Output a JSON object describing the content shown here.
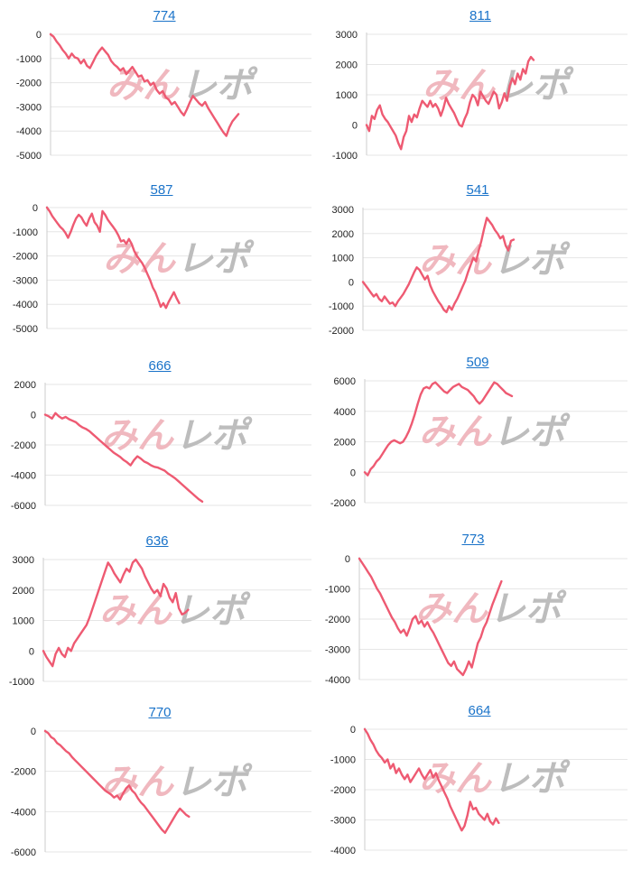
{
  "watermark": {
    "left": "みん",
    "right": "レポ"
  },
  "colors": {
    "line": "#ee5a72",
    "grid": "#e6e6e6",
    "axis": "#cccccc",
    "title": "#1a73c9",
    "watermark_left": "#f0b8bf",
    "watermark_right": "#bdbdbd"
  },
  "chart_data": [
    {
      "type": "line",
      "title": "774",
      "ylim": [
        -5000,
        0
      ],
      "yticks": [
        0,
        -1000,
        -2000,
        -3000,
        -4000,
        -5000
      ],
      "grid": true,
      "values": [
        0,
        -100,
        -300,
        -450,
        -650,
        -800,
        -1000,
        -800,
        -950,
        -1000,
        -1200,
        -1050,
        -1300,
        -1400,
        -1150,
        -900,
        -700,
        -550,
        -700,
        -850,
        -1100,
        -1250,
        -1350,
        -1500,
        -1400,
        -1650,
        -1500,
        -1350,
        -1550,
        -1750,
        -1700,
        -1950,
        -1900,
        -2100,
        -2000,
        -2300,
        -2450,
        -2350,
        -2600,
        -2700,
        -2900,
        -2800,
        -3000,
        -3200,
        -3350,
        -3100,
        -2800,
        -2550,
        -2700,
        -2850,
        -2950,
        -2800,
        -3050,
        -3250,
        -3450,
        -3650,
        -3850,
        -4050,
        -4200,
        -3850,
        -3600,
        -3450,
        -3300
      ]
    },
    {
      "type": "line",
      "title": "811",
      "ylim": [
        -1000,
        3000
      ],
      "yticks": [
        3000,
        2000,
        1000,
        0,
        -1000
      ],
      "grid": true,
      "values": [
        0,
        -200,
        300,
        200,
        500,
        650,
        350,
        200,
        100,
        -50,
        -200,
        -350,
        -600,
        -800,
        -400,
        -200,
        300,
        100,
        350,
        250,
        550,
        800,
        700,
        600,
        800,
        600,
        700,
        550,
        300,
        550,
        900,
        700,
        550,
        400,
        200,
        0,
        -50,
        200,
        400,
        750,
        1000,
        900,
        650,
        1100,
        950,
        800,
        700,
        900,
        1100,
        1000,
        550,
        750,
        1050,
        800,
        1300,
        1550,
        1350,
        1700,
        1500,
        1850,
        1700,
        2100,
        2250,
        2150
      ]
    },
    {
      "type": "line",
      "title": "587",
      "ylim": [
        -5000,
        0
      ],
      "yticks": [
        0,
        -1000,
        -2000,
        -3000,
        -4000,
        -5000
      ],
      "grid": true,
      "values": [
        0,
        -150,
        -350,
        -500,
        -650,
        -800,
        -900,
        -1050,
        -1250,
        -1000,
        -700,
        -450,
        -300,
        -400,
        -600,
        -750,
        -450,
        -250,
        -600,
        -750,
        -1000,
        -150,
        -300,
        -500,
        -650,
        -800,
        -950,
        -1150,
        -1400,
        -1350,
        -1500,
        -1300,
        -1500,
        -1800,
        -2000,
        -2150,
        -2300,
        -2500,
        -2750,
        -3000,
        -3300,
        -3500,
        -3800,
        -4100,
        -3950,
        -4150,
        -3900,
        -3700,
        -3500,
        -3750,
        -3950
      ]
    },
    {
      "type": "line",
      "title": "541",
      "ylim": [
        -2000,
        3000
      ],
      "yticks": [
        3000,
        2000,
        1000,
        0,
        -1000,
        -2000
      ],
      "grid": true,
      "values": [
        0,
        -150,
        -300,
        -450,
        -600,
        -500,
        -700,
        -800,
        -600,
        -750,
        -900,
        -850,
        -1000,
        -800,
        -650,
        -500,
        -300,
        -100,
        150,
        400,
        600,
        500,
        300,
        100,
        250,
        -150,
        -400,
        -600,
        -800,
        -950,
        -1150,
        -1250,
        -1000,
        -1150,
        -900,
        -700,
        -450,
        -200,
        50,
        400,
        700,
        1000,
        850,
        1300,
        1700,
        2200,
        2650,
        2500,
        2350,
        2150,
        2000,
        1800,
        1900,
        1500,
        1300,
        1700,
        1750
      ]
    },
    {
      "type": "line",
      "title": "666",
      "ylim": [
        -6000,
        2000
      ],
      "yticks": [
        2000,
        0,
        -2000,
        -4000,
        -6000
      ],
      "grid": true,
      "values": [
        0,
        -100,
        -250,
        100,
        -100,
        -250,
        -150,
        -300,
        -400,
        -500,
        -700,
        -850,
        -950,
        -1100,
        -1300,
        -1500,
        -1700,
        -1900,
        -2100,
        -2300,
        -2500,
        -2650,
        -2800,
        -3000,
        -3150,
        -3350,
        -3000,
        -2750,
        -2900,
        -3100,
        -3200,
        -3350,
        -3450,
        -3500,
        -3600,
        -3700,
        -3900,
        -4050,
        -4200,
        -4400,
        -4600,
        -4800,
        -5000,
        -5200,
        -5400,
        -5600,
        -5750
      ]
    },
    {
      "type": "line",
      "title": "509",
      "ylim": [
        -2000,
        6000
      ],
      "yticks": [
        6000,
        4000,
        2000,
        0,
        -2000
      ],
      "grid": true,
      "values": [
        0,
        -200,
        200,
        400,
        700,
        900,
        1200,
        1500,
        1800,
        2000,
        2100,
        2000,
        1900,
        2000,
        2300,
        2700,
        3200,
        3800,
        4500,
        5100,
        5500,
        5600,
        5500,
        5800,
        5900,
        5700,
        5500,
        5300,
        5200,
        5400,
        5600,
        5700,
        5800,
        5600,
        5500,
        5400,
        5200,
        5000,
        4700,
        4500,
        4700,
        5000,
        5300,
        5600,
        5900,
        5800,
        5600,
        5400,
        5200,
        5100,
        5000
      ]
    },
    {
      "type": "line",
      "title": "636",
      "ylim": [
        -1000,
        3000
      ],
      "yticks": [
        3000,
        2000,
        1000,
        0,
        -1000
      ],
      "grid": true,
      "values": [
        0,
        -200,
        -350,
        -500,
        -100,
        100,
        -100,
        -200,
        100,
        0,
        250,
        400,
        550,
        700,
        850,
        1100,
        1400,
        1700,
        2000,
        2300,
        2600,
        2900,
        2750,
        2550,
        2400,
        2250,
        2500,
        2700,
        2600,
        2900,
        3000,
        2850,
        2700,
        2450,
        2250,
        2050,
        1900,
        2000,
        1800,
        2200,
        2050,
        1750,
        1600,
        1900,
        1400,
        1200,
        1250,
        1350
      ]
    },
    {
      "type": "line",
      "title": "773",
      "ylim": [
        -4000,
        0
      ],
      "yticks": [
        0,
        -1000,
        -2000,
        -3000,
        -4000
      ],
      "grid": true,
      "values": [
        0,
        -150,
        -300,
        -450,
        -600,
        -800,
        -1000,
        -1150,
        -1350,
        -1550,
        -1750,
        -1950,
        -2100,
        -2300,
        -2450,
        -2350,
        -2550,
        -2300,
        -2000,
        -1900,
        -2150,
        -2050,
        -2250,
        -2100,
        -2300,
        -2450,
        -2650,
        -2850,
        -3050,
        -3250,
        -3450,
        -3550,
        -3400,
        -3650,
        -3750,
        -3850,
        -3650,
        -3400,
        -3600,
        -3200,
        -2800,
        -2600,
        -2300,
        -2100,
        -1800,
        -1500,
        -1250,
        -1000,
        -750
      ]
    },
    {
      "type": "line",
      "title": "770",
      "ylim": [
        -6000,
        0
      ],
      "yticks": [
        0,
        -2000,
        -4000,
        -6000
      ],
      "grid": true,
      "values": [
        0,
        -100,
        -300,
        -400,
        -600,
        -700,
        -850,
        -1000,
        -1100,
        -1300,
        -1450,
        -1600,
        -1750,
        -1900,
        -2050,
        -2200,
        -2350,
        -2500,
        -2650,
        -2800,
        -2950,
        -3050,
        -3150,
        -3300,
        -3200,
        -3400,
        -3100,
        -2850,
        -2700,
        -2950,
        -3100,
        -3350,
        -3550,
        -3700,
        -3900,
        -4100,
        -4300,
        -4500,
        -4700,
        -4900,
        -5050,
        -4800,
        -4550,
        -4300,
        -4050,
        -3850,
        -4000,
        -4150,
        -4250
      ]
    },
    {
      "type": "line",
      "title": "664",
      "ylim": [
        -4000,
        0
      ],
      "yticks": [
        0,
        -1000,
        -2000,
        -3000,
        -4000
      ],
      "grid": true,
      "values": [
        0,
        -150,
        -350,
        -500,
        -700,
        -850,
        -950,
        -1100,
        -1000,
        -1300,
        -1150,
        -1450,
        -1300,
        -1500,
        -1650,
        -1500,
        -1750,
        -1600,
        -1450,
        -1300,
        -1500,
        -1650,
        -1500,
        -1350,
        -1600,
        -1450,
        -1700,
        -1900,
        -2100,
        -2300,
        -2550,
        -2750,
        -2950,
        -3150,
        -3350,
        -3200,
        -2850,
        -2400,
        -2650,
        -2600,
        -2800,
        -2900,
        -3000,
        -2800,
        -3050,
        -3150,
        -2950,
        -3100
      ]
    }
  ]
}
